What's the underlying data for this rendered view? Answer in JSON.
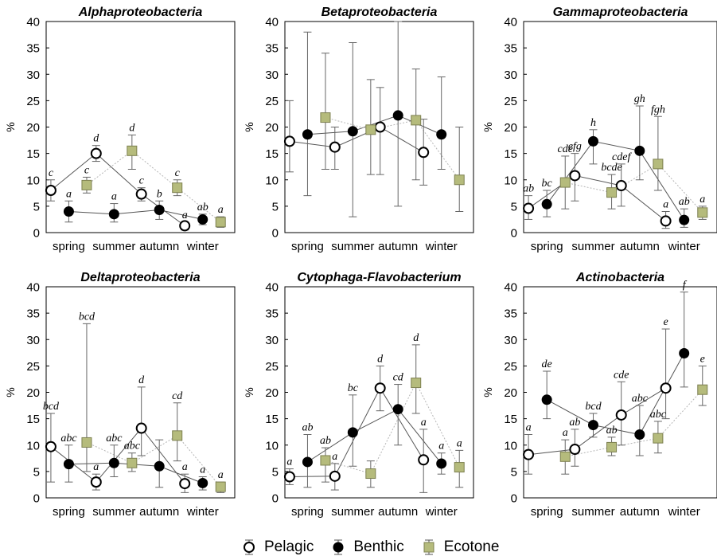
{
  "colors": {
    "pelagic": "#ffffff",
    "benthic": "#000000",
    "ecotone": "#b5bb7c",
    "line_pelagic": "#555555",
    "line_benthic": "#555555",
    "line_ecotone": "#b5b5b5"
  },
  "legend": {
    "pelagic": "Pelagic",
    "benthic": "Benthic",
    "ecotone": "Ecotone"
  },
  "ylabel": "%",
  "chart_data": [
    {
      "type": "scatter",
      "title": "Alphaproteobacteria",
      "categories": [
        "spring",
        "summer",
        "autumn",
        "winter"
      ],
      "ylim": [
        0,
        40
      ],
      "yticks": [
        0,
        5,
        10,
        15,
        20,
        25,
        30,
        35,
        40
      ],
      "series": [
        {
          "name": "Pelagic",
          "values": [
            8,
            15,
            7.3,
            1.3
          ],
          "err_low": [
            6,
            13.5,
            6,
            0.5
          ],
          "err_high": [
            10,
            16.5,
            8.5,
            2
          ],
          "letters": [
            "c",
            "d",
            "c",
            "a"
          ]
        },
        {
          "name": "Benthic",
          "values": [
            4,
            3.5,
            4.3,
            2.5
          ],
          "err_low": [
            2,
            2,
            2.5,
            1.5
          ],
          "err_high": [
            6,
            5.5,
            6,
            3.5
          ],
          "letters": [
            "a",
            "a",
            "b",
            "ab"
          ]
        },
        {
          "name": "Ecotone",
          "values": [
            9,
            15.5,
            8.5,
            2
          ],
          "err_low": [
            7.5,
            12,
            7,
            1
          ],
          "err_high": [
            10.5,
            18.5,
            10,
            3
          ],
          "letters": [
            "c",
            "d",
            "c",
            "a"
          ]
        }
      ]
    },
    {
      "type": "scatter",
      "title": "Betaproteobacteria",
      "categories": [
        "spring",
        "summer",
        "autumn",
        "winter"
      ],
      "ylim": [
        0,
        40
      ],
      "yticks": [
        0,
        5,
        10,
        15,
        20,
        25,
        30,
        35,
        40
      ],
      "series": [
        {
          "name": "Pelagic",
          "values": [
            17.3,
            16.2,
            20,
            15.2
          ],
          "err_low": [
            11.5,
            12,
            11,
            9
          ],
          "err_high": [
            25,
            20,
            27.5,
            21.5
          ],
          "letters": [
            "",
            "",
            "",
            ""
          ]
        },
        {
          "name": "Benthic",
          "values": [
            18.6,
            19.2,
            22.2,
            18.6
          ],
          "err_low": [
            7,
            3,
            5,
            12
          ],
          "err_high": [
            38,
            36,
            40,
            29.5
          ],
          "letters": [
            "",
            "",
            "",
            ""
          ]
        },
        {
          "name": "Ecotone",
          "values": [
            21.8,
            19.5,
            21.3,
            10
          ],
          "err_low": [
            12,
            11,
            10,
            4
          ],
          "err_high": [
            34,
            29,
            31,
            20
          ],
          "letters": [
            "",
            "",
            "",
            ""
          ]
        }
      ]
    },
    {
      "type": "scatter",
      "title": "Gammaproteobacteria",
      "categories": [
        "spring",
        "summer",
        "autumn",
        "winter"
      ],
      "ylim": [
        0,
        40
      ],
      "yticks": [
        0,
        5,
        10,
        15,
        20,
        25,
        30,
        35,
        40
      ],
      "series": [
        {
          "name": "Pelagic",
          "values": [
            4.6,
            10.8,
            8.9,
            2.2
          ],
          "err_low": [
            2.5,
            6,
            5,
            0.8
          ],
          "err_high": [
            7,
            15,
            13,
            4
          ],
          "letters": [
            "ab",
            "efg",
            "cdef",
            "a"
          ]
        },
        {
          "name": "Benthic",
          "values": [
            5.4,
            17.3,
            15.5,
            2.4
          ],
          "err_low": [
            3,
            13,
            10,
            1
          ],
          "err_high": [
            8,
            19.5,
            24,
            4.5
          ],
          "letters": [
            "bc",
            "h",
            "gh",
            "ab"
          ]
        },
        {
          "name": "Ecotone",
          "values": [
            9.5,
            7.6,
            13,
            3.8
          ],
          "err_low": [
            4.5,
            4.5,
            8,
            2.5
          ],
          "err_high": [
            14.5,
            11,
            22,
            5
          ],
          "letters": [
            "cde",
            "bcde",
            "fgh",
            "a"
          ]
        }
      ]
    },
    {
      "type": "scatter",
      "title": "Deltaproteobacteria",
      "categories": [
        "spring",
        "summer",
        "autumn",
        "winter"
      ],
      "ylim": [
        0,
        40
      ],
      "yticks": [
        0,
        5,
        10,
        15,
        20,
        25,
        30,
        35,
        40
      ],
      "series": [
        {
          "name": "Pelagic",
          "values": [
            9.7,
            3,
            13.2,
            2.7
          ],
          "err_low": [
            3,
            1.5,
            8,
            1
          ],
          "err_high": [
            16,
            4.5,
            21,
            4.5
          ],
          "letters": [
            "bcd",
            "a",
            "d",
            "a"
          ]
        },
        {
          "name": "Benthic",
          "values": [
            6.4,
            6.6,
            6,
            2.8
          ],
          "err_low": [
            3,
            4,
            2,
            1.5
          ],
          "err_high": [
            10,
            10,
            11,
            4
          ],
          "letters": [
            "abc",
            "abc",
            "",
            "a"
          ]
        },
        {
          "name": "Ecotone",
          "values": [
            10.5,
            6.6,
            11.8,
            2.1
          ],
          "err_low": [
            5,
            5,
            7,
            1
          ],
          "err_high": [
            33,
            8.5,
            18,
            3
          ],
          "letters": [
            "bcd",
            "abc",
            "cd",
            "a"
          ]
        }
      ]
    },
    {
      "type": "scatter",
      "title": "Cytophaga-Flavobacterium",
      "categories": [
        "spring",
        "summer",
        "autumn",
        "winter"
      ],
      "ylim": [
        0,
        40
      ],
      "yticks": [
        0,
        5,
        10,
        15,
        20,
        25,
        30,
        35,
        40
      ],
      "series": [
        {
          "name": "Pelagic",
          "values": [
            4,
            4.1,
            20.8,
            7.2
          ],
          "err_low": [
            2.5,
            1.5,
            16.5,
            1
          ],
          "err_high": [
            5.5,
            6.5,
            25,
            13
          ],
          "letters": [
            "a",
            "a",
            "d",
            "a"
          ]
        },
        {
          "name": "Benthic",
          "values": [
            6.8,
            12.4,
            16.8,
            6.5
          ],
          "err_low": [
            2,
            6,
            10,
            4.5
          ],
          "err_high": [
            12,
            19.5,
            21.5,
            8.5
          ],
          "letters": [
            "ab",
            "bc",
            "cd",
            "a"
          ]
        },
        {
          "name": "Ecotone",
          "values": [
            7.1,
            4.6,
            21.8,
            5.8
          ],
          "err_low": [
            3,
            2,
            16,
            2
          ],
          "err_high": [
            9.5,
            7,
            29,
            9
          ],
          "letters": [
            "ab",
            "",
            "d",
            "a"
          ]
        }
      ]
    },
    {
      "type": "scatter",
      "title": "Actinobacteria",
      "categories": [
        "spring",
        "summer",
        "autumn",
        "winter"
      ],
      "ylim": [
        0,
        40
      ],
      "yticks": [
        0,
        5,
        10,
        15,
        20,
        25,
        30,
        35,
        40
      ],
      "series": [
        {
          "name": "Pelagic",
          "values": [
            8.2,
            9.2,
            15.7,
            20.8
          ],
          "err_low": [
            4.5,
            6,
            10,
            15
          ],
          "err_high": [
            12,
            13,
            22,
            32
          ],
          "letters": [
            "a",
            "ab",
            "cde",
            "e"
          ]
        },
        {
          "name": "Benthic",
          "values": [
            18.6,
            13.8,
            12,
            27.4
          ],
          "err_low": [
            15,
            11.5,
            8,
            21
          ],
          "err_high": [
            24,
            16,
            17.5,
            39
          ],
          "letters": [
            "de",
            "bcd",
            "abc",
            "f"
          ]
        },
        {
          "name": "Ecotone",
          "values": [
            7.8,
            9.6,
            11.3,
            20.5
          ],
          "err_low": [
            4.5,
            8,
            8.5,
            17.5
          ],
          "err_high": [
            11,
            11.5,
            14.5,
            25
          ],
          "letters": [
            "a",
            "ab",
            "abc",
            "e"
          ]
        }
      ]
    }
  ]
}
